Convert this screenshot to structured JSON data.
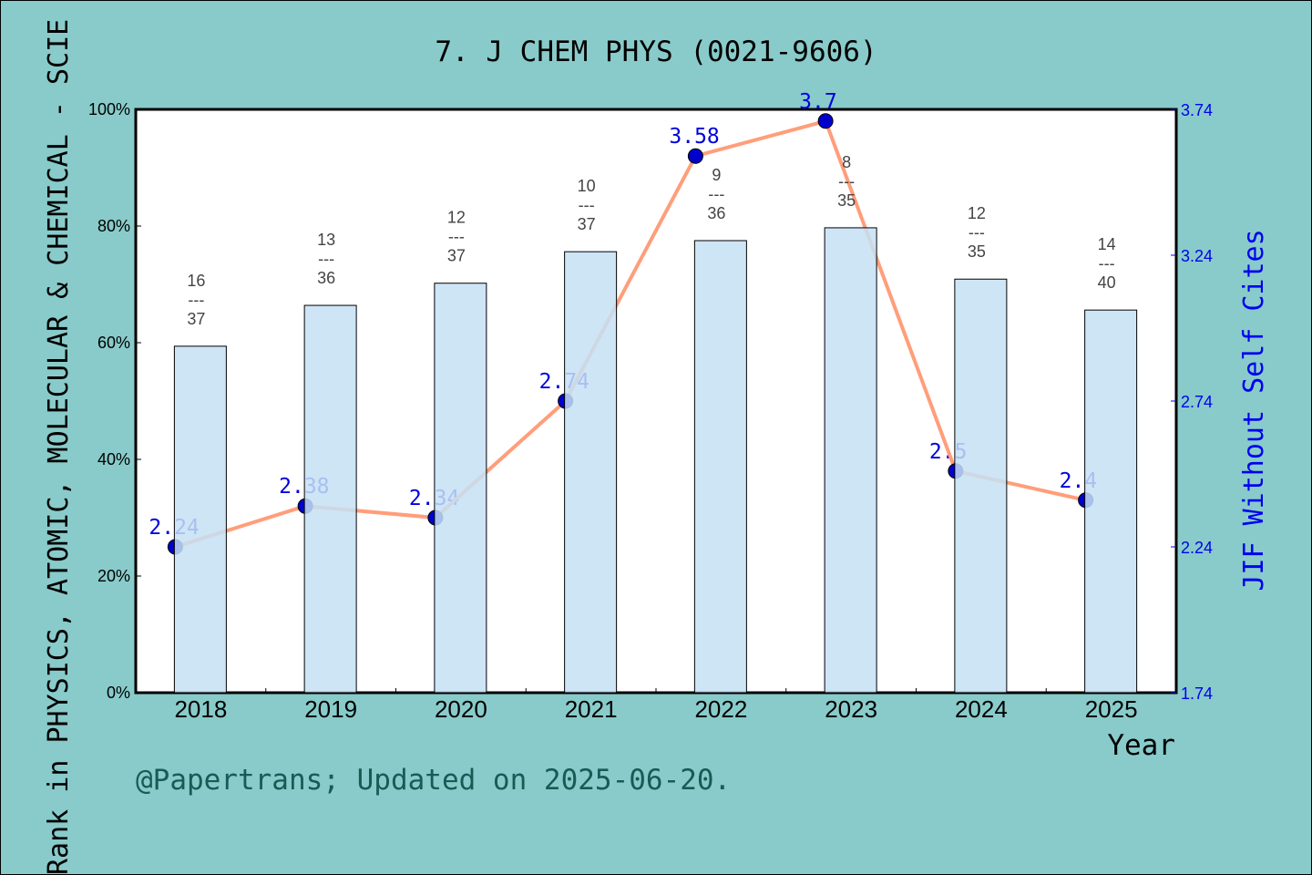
{
  "chart_data": {
    "type": "bar",
    "title": "7. J CHEM PHYS (0021-9606)",
    "xlabel": "Year",
    "ylabel": "Rank in PHYSICS, ATOMIC, MOLECULAR & CHEMICAL - SCIE",
    "y2label": "JIF Without Self Cites",
    "footer": "@Papertrans; Updated on 2025-06-20.",
    "categories": [
      "2018",
      "2019",
      "2020",
      "2021",
      "2022",
      "2023",
      "2024",
      "2025"
    ],
    "ylim": [
      0,
      100
    ],
    "yticks": [
      "0%",
      "20%",
      "40%",
      "60%",
      "80%",
      "100%"
    ],
    "y2lim": [
      1.74,
      3.74
    ],
    "y2ticks": [
      "1.74",
      "2.24",
      "2.74",
      "3.24",
      "3.74"
    ],
    "bar_series": {
      "values": [
        59.4,
        66.4,
        70.2,
        75.6,
        77.5,
        79.7,
        70.9,
        65.6
      ],
      "ranks": [
        {
          "rank": "16",
          "total": "37"
        },
        {
          "rank": "13",
          "total": "36"
        },
        {
          "rank": "12",
          "total": "37"
        },
        {
          "rank": "10",
          "total": "37"
        },
        {
          "rank": "9",
          "total": "36"
        },
        {
          "rank": "8",
          "total": "35"
        },
        {
          "rank": "12",
          "total": "35"
        },
        {
          "rank": "14",
          "total": "40"
        }
      ],
      "color": "#c5e0f5"
    },
    "line_series": {
      "values": [
        2.24,
        2.38,
        2.34,
        2.74,
        3.58,
        3.7,
        2.5,
        2.4
      ],
      "labels": [
        "2.24",
        "2.38",
        "2.34",
        "2.74",
        "3.58",
        "3.7",
        "2.5",
        "2.4"
      ],
      "color": "#ff9e7a",
      "marker_color": "#0000cc"
    },
    "grid": false,
    "background": "#88cbca"
  }
}
